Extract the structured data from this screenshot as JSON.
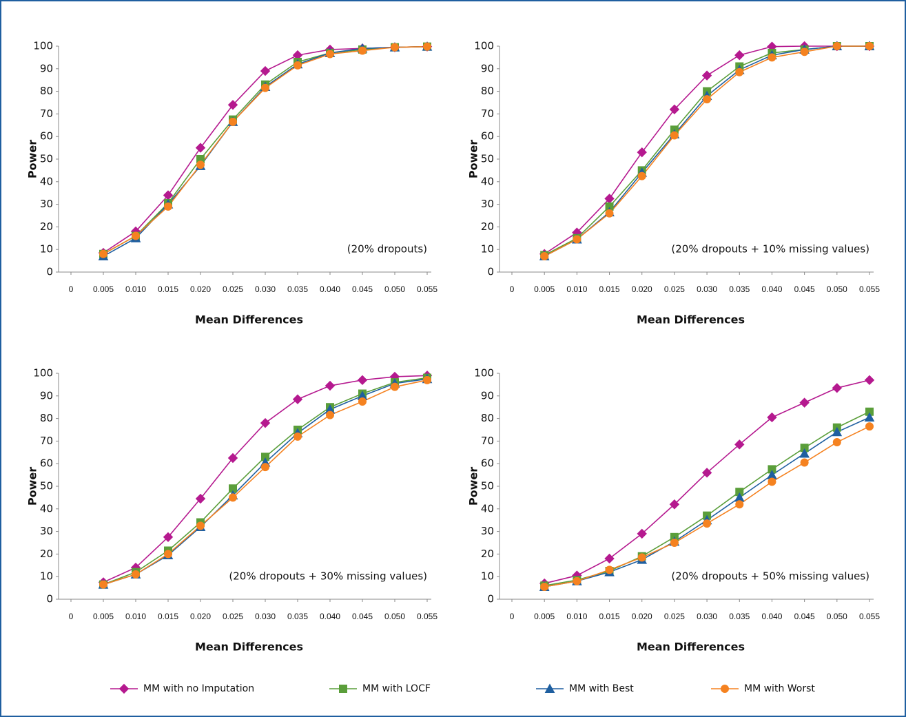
{
  "chart_data": [
    {
      "type": "line",
      "annotation": "(20% dropouts)",
      "xlabel": "Mean Differences",
      "ylabel": "Power",
      "x": [
        0.005,
        0.01,
        0.015,
        0.02,
        0.025,
        0.03,
        0.035,
        0.04,
        0.045,
        0.05,
        0.055
      ],
      "xlim": [
        0,
        0.055
      ],
      "xticks": [
        0,
        0.005,
        {
          "value": 0.01,
          "label": "0.010"
        },
        0.015,
        {
          "value": 0.02,
          "label": "0.020"
        },
        0.025,
        {
          "value": 0.03,
          "label": "0.030"
        },
        0.035,
        {
          "value": 0.04,
          "label": "0.040"
        },
        0.045,
        {
          "value": 0.05,
          "label": "0.050"
        },
        0.055
      ],
      "ylim": [
        0,
        100
      ],
      "yticks": [
        0,
        10,
        20,
        30,
        40,
        50,
        60,
        70,
        80,
        90,
        100
      ],
      "grid": false,
      "series": [
        {
          "name": "MM with no Imputation",
          "color": "#b5198f",
          "marker": "diamond",
          "values": [
            8.5,
            18,
            34,
            55,
            74,
            89,
            96,
            98.5,
            99,
            99.5,
            99.8
          ]
        },
        {
          "name": "MM with LOCF",
          "color": "#5a9e3a",
          "marker": "square",
          "values": [
            8,
            16,
            30.5,
            50,
            67.5,
            83,
            93,
            97,
            98.5,
            99.5,
            99.8
          ]
        },
        {
          "name": "MM with Best",
          "color": "#1f5fa0",
          "marker": "triangle",
          "values": [
            7,
            15,
            30,
            47,
            66.5,
            82,
            92,
            97,
            99,
            99.5,
            99.8
          ]
        },
        {
          "name": "MM with Worst",
          "color": "#f58220",
          "marker": "circle",
          "values": [
            8,
            16,
            29,
            47.5,
            66.5,
            81.5,
            91.5,
            96.5,
            98,
            99.5,
            99.8
          ]
        }
      ]
    },
    {
      "type": "line",
      "annotation": "(20% dropouts + 10% missing values)",
      "xlabel": "Mean Differences",
      "ylabel": "Power",
      "x": [
        0.005,
        0.01,
        0.015,
        0.02,
        0.025,
        0.03,
        0.035,
        0.04,
        0.045,
        0.05,
        0.055
      ],
      "xlim": [
        0,
        0.055
      ],
      "xticks": [
        0,
        0.005,
        {
          "value": 0.01,
          "label": "0.010"
        },
        0.015,
        {
          "value": 0.02,
          "label": "0.020"
        },
        0.025,
        {
          "value": 0.03,
          "label": "0.030"
        },
        0.035,
        {
          "value": 0.04,
          "label": "0.040"
        },
        0.045,
        {
          "value": 0.05,
          "label": "0.050"
        },
        0.055
      ],
      "ylim": [
        0,
        100
      ],
      "yticks": [
        0,
        10,
        20,
        30,
        40,
        50,
        60,
        70,
        80,
        90,
        100
      ],
      "grid": false,
      "series": [
        {
          "name": "MM with no Imputation",
          "color": "#b5198f",
          "marker": "diamond",
          "values": [
            8,
            17.5,
            32.5,
            53,
            72,
            87,
            96,
            99.8,
            100,
            100,
            100
          ]
        },
        {
          "name": "MM with LOCF",
          "color": "#5a9e3a",
          "marker": "square",
          "values": [
            7.5,
            15,
            29,
            45,
            63,
            80,
            91,
            97,
            98.5,
            100,
            100
          ]
        },
        {
          "name": "MM with Best",
          "color": "#1f5fa0",
          "marker": "triangle",
          "values": [
            7,
            14.5,
            26.5,
            44,
            61,
            78,
            89.5,
            96,
            98.5,
            100,
            100
          ]
        },
        {
          "name": "MM with Worst",
          "color": "#f58220",
          "marker": "circle",
          "values": [
            7,
            14.5,
            26,
            42.5,
            60.5,
            76.5,
            88.5,
            95,
            97.5,
            100,
            100
          ]
        }
      ]
    },
    {
      "type": "line",
      "annotation": "(20% dropouts + 30% missing values)",
      "xlabel": "Mean Differences",
      "ylabel": "Power",
      "x": [
        0.005,
        0.01,
        0.015,
        0.02,
        0.025,
        0.03,
        0.035,
        0.04,
        0.045,
        0.05,
        0.055
      ],
      "xlim": [
        0,
        0.055
      ],
      "xticks": [
        0,
        0.005,
        {
          "value": 0.01,
          "label": "0.010"
        },
        0.015,
        {
          "value": 0.02,
          "label": "0.020"
        },
        0.025,
        {
          "value": 0.03,
          "label": "0.030"
        },
        0.035,
        {
          "value": 0.04,
          "label": "0.040"
        },
        0.045,
        {
          "value": 0.05,
          "label": "0.050"
        },
        0.055
      ],
      "ylim": [
        0,
        100
      ],
      "yticks": [
        0,
        10,
        20,
        30,
        40,
        50,
        60,
        70,
        80,
        90,
        100
      ],
      "grid": false,
      "series": [
        {
          "name": "MM with no Imputation",
          "color": "#b5198f",
          "marker": "diamond",
          "values": [
            7.5,
            14,
            27.5,
            44.5,
            62.5,
            78,
            88.5,
            94.5,
            97,
            98.5,
            99
          ]
        },
        {
          "name": "MM with LOCF",
          "color": "#5a9e3a",
          "marker": "square",
          "values": [
            6.5,
            12,
            21.5,
            34,
            49,
            63,
            75,
            85,
            91,
            96,
            98
          ]
        },
        {
          "name": "MM with Best",
          "color": "#1f5fa0",
          "marker": "triangle",
          "values": [
            6.5,
            11,
            19.5,
            32,
            46,
            60.5,
            73.5,
            84,
            90,
            95.5,
            97.5
          ]
        },
        {
          "name": "MM with Worst",
          "color": "#f58220",
          "marker": "circle",
          "values": [
            6.5,
            11,
            20,
            32.5,
            45,
            58.5,
            72,
            81.5,
            87.5,
            94,
            97
          ]
        }
      ]
    },
    {
      "type": "line",
      "annotation": "(20% dropouts + 50% missing values)",
      "xlabel": "Mean Differences",
      "ylabel": "Power",
      "x": [
        0.005,
        0.01,
        0.015,
        0.02,
        0.025,
        0.03,
        0.035,
        0.04,
        0.045,
        0.05,
        0.055
      ],
      "xlim": [
        0,
        0.055
      ],
      "xticks": [
        0,
        0.005,
        {
          "value": 0.01,
          "label": "0.010"
        },
        0.015,
        {
          "value": 0.02,
          "label": "0.020"
        },
        0.025,
        {
          "value": 0.03,
          "label": "0.030"
        },
        0.035,
        {
          "value": 0.04,
          "label": "0.040"
        },
        0.045,
        {
          "value": 0.05,
          "label": "0.050"
        },
        0.055
      ],
      "ylim": [
        0,
        100
      ],
      "yticks": [
        0,
        10,
        20,
        30,
        40,
        50,
        60,
        70,
        80,
        90,
        100
      ],
      "grid": false,
      "series": [
        {
          "name": "MM with no Imputation",
          "color": "#b5198f",
          "marker": "diamond",
          "values": [
            7,
            10.5,
            18,
            29,
            42,
            56,
            68.5,
            80.5,
            87,
            93.5,
            97
          ]
        },
        {
          "name": "MM with LOCF",
          "color": "#5a9e3a",
          "marker": "square",
          "values": [
            6,
            8.5,
            12.5,
            19,
            27.5,
            37,
            47.5,
            57.5,
            67,
            76,
            83
          ]
        },
        {
          "name": "MM with Best",
          "color": "#1f5fa0",
          "marker": "triangle",
          "values": [
            5.5,
            8,
            12,
            17.5,
            25.5,
            35,
            45,
            55,
            64.5,
            74,
            80.5
          ]
        },
        {
          "name": "MM with Worst",
          "color": "#f58220",
          "marker": "circle",
          "values": [
            5.5,
            8,
            13,
            18.5,
            25,
            33.5,
            42,
            52,
            60.5,
            69.5,
            76.5
          ]
        }
      ]
    }
  ]
}
